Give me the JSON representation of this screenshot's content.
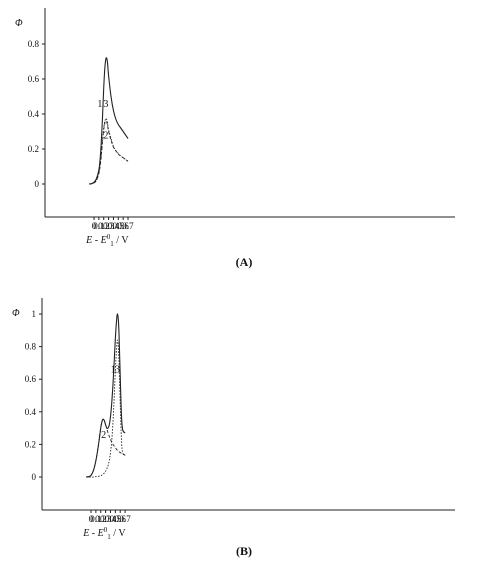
{
  "chart_data": [
    {
      "type": "line",
      "panel_label": "(A)",
      "ylabel": "Φ",
      "xlabel_parts": [
        "E",
        " - ",
        "E",
        "0",
        "1",
        " / V"
      ],
      "xlim": [
        -0.1,
        0.72
      ],
      "ylim": [
        -0.18,
        0.95
      ],
      "xticks": [
        0,
        0.1,
        0.2,
        0.3,
        0.4,
        0.5,
        0.6,
        0.7
      ],
      "xtick_labels": [
        "0",
        "0.1",
        "0.2",
        "0.3",
        "0.4",
        "0.5",
        "0.6",
        "0.7"
      ],
      "yticks": [
        0,
        0.2,
        0.4,
        0.6,
        0.8
      ],
      "ytick_labels": [
        "0",
        "0.2",
        "0.4",
        "0.6",
        "0.8"
      ],
      "grid": false,
      "x": [
        -0.1,
        -0.05,
        0,
        0.05,
        0.1,
        0.125,
        0.15,
        0.175,
        0.2,
        0.225,
        0.25,
        0.275,
        0.3,
        0.35,
        0.4,
        0.45,
        0.5,
        0.55,
        0.6,
        0.65,
        0.7
      ],
      "series": [
        {
          "name": "1",
          "values": [
            0,
            0.002,
            0.01,
            0.03,
            0.08,
            0.14,
            0.24,
            0.38,
            0.55,
            0.67,
            0.72,
            0.7,
            0.62,
            0.5,
            0.42,
            0.37,
            0.34,
            0.32,
            0.3,
            0.28,
            0.26
          ],
          "style": "solid"
        },
        {
          "name": "2",
          "values": [
            0,
            0.001,
            0.006,
            0.02,
            0.06,
            0.1,
            0.16,
            0.24,
            0.31,
            0.35,
            0.36,
            0.34,
            0.3,
            0.25,
            0.21,
            0.19,
            0.17,
            0.16,
            0.15,
            0.14,
            0.13
          ],
          "style": "dashed"
        },
        {
          "name": "3",
          "values": [
            0,
            0.001,
            0.007,
            0.022,
            0.065,
            0.11,
            0.17,
            0.25,
            0.32,
            0.36,
            0.375,
            0.355,
            0.31,
            0.26,
            0.215,
            0.19,
            0.175,
            0.16,
            0.15,
            0.14,
            0.13
          ],
          "style": "dotted"
        }
      ],
      "annotations": [
        {
          "text": "1",
          "x": 0.12,
          "y": 0.44
        },
        {
          "text": "3",
          "x": 0.245,
          "y": 0.44
        },
        {
          "text": "2",
          "x": 0.245,
          "y": 0.26
        }
      ]
    },
    {
      "type": "line",
      "panel_label": "(B)",
      "ylabel": "Φ",
      "xlabel_parts": [
        "E",
        " - ",
        "E",
        "0",
        "1",
        " / V"
      ],
      "xlim": [
        -0.1,
        0.72
      ],
      "ylim": [
        -0.2,
        1.1
      ],
      "xticks": [
        0,
        0.1,
        0.2,
        0.3,
        0.4,
        0.5,
        0.6,
        0.7
      ],
      "xtick_labels": [
        "0",
        "0.1",
        "0.2",
        "0.3",
        "0.4",
        "0.5",
        "0.6",
        "0.7"
      ],
      "yticks": [
        0,
        0.2,
        0.4,
        0.6,
        0.8,
        1.0
      ],
      "ytick_labels": [
        "0",
        "0.2",
        "0.4",
        "0.6",
        "0.8",
        "1"
      ],
      "grid": false,
      "x": [
        -0.1,
        -0.05,
        0,
        0.05,
        0.1,
        0.15,
        0.2,
        0.225,
        0.25,
        0.275,
        0.3,
        0.325,
        0.35,
        0.375,
        0.4,
        0.425,
        0.45,
        0.475,
        0.5,
        0.525,
        0.54,
        0.56,
        0.575,
        0.6,
        0.625,
        0.65,
        0.7
      ],
      "series": [
        {
          "name": "1",
          "values": [
            0,
            0.002,
            0.01,
            0.04,
            0.1,
            0.19,
            0.3,
            0.34,
            0.355,
            0.345,
            0.32,
            0.3,
            0.3,
            0.32,
            0.37,
            0.45,
            0.56,
            0.7,
            0.85,
            0.96,
            1.0,
            0.97,
            0.88,
            0.62,
            0.38,
            0.29,
            0.27
          ],
          "style": "solid"
        },
        {
          "name": "2",
          "values": [
            0,
            0.002,
            0.01,
            0.04,
            0.1,
            0.19,
            0.3,
            0.34,
            0.355,
            0.345,
            0.32,
            0.295,
            0.27,
            0.25,
            0.23,
            0.215,
            0.2,
            0.19,
            0.18,
            0.17,
            0.165,
            0.16,
            0.155,
            0.15,
            0.145,
            0.14,
            0.135
          ],
          "style": "dashed"
        },
        {
          "name": "3",
          "values": [
            0,
            0,
            0,
            0,
            0.002,
            0.004,
            0.008,
            0.012,
            0.018,
            0.025,
            0.035,
            0.05,
            0.07,
            0.1,
            0.15,
            0.22,
            0.33,
            0.48,
            0.65,
            0.79,
            0.84,
            0.8,
            0.7,
            0.45,
            0.23,
            0.15,
            0.13
          ],
          "style": "dotted"
        }
      ],
      "annotations": [
        {
          "text": "1",
          "x": 0.455,
          "y": 0.64
        },
        {
          "text": "3",
          "x": 0.545,
          "y": 0.64
        },
        {
          "text": "2",
          "x": 0.26,
          "y": 0.24
        }
      ]
    }
  ]
}
